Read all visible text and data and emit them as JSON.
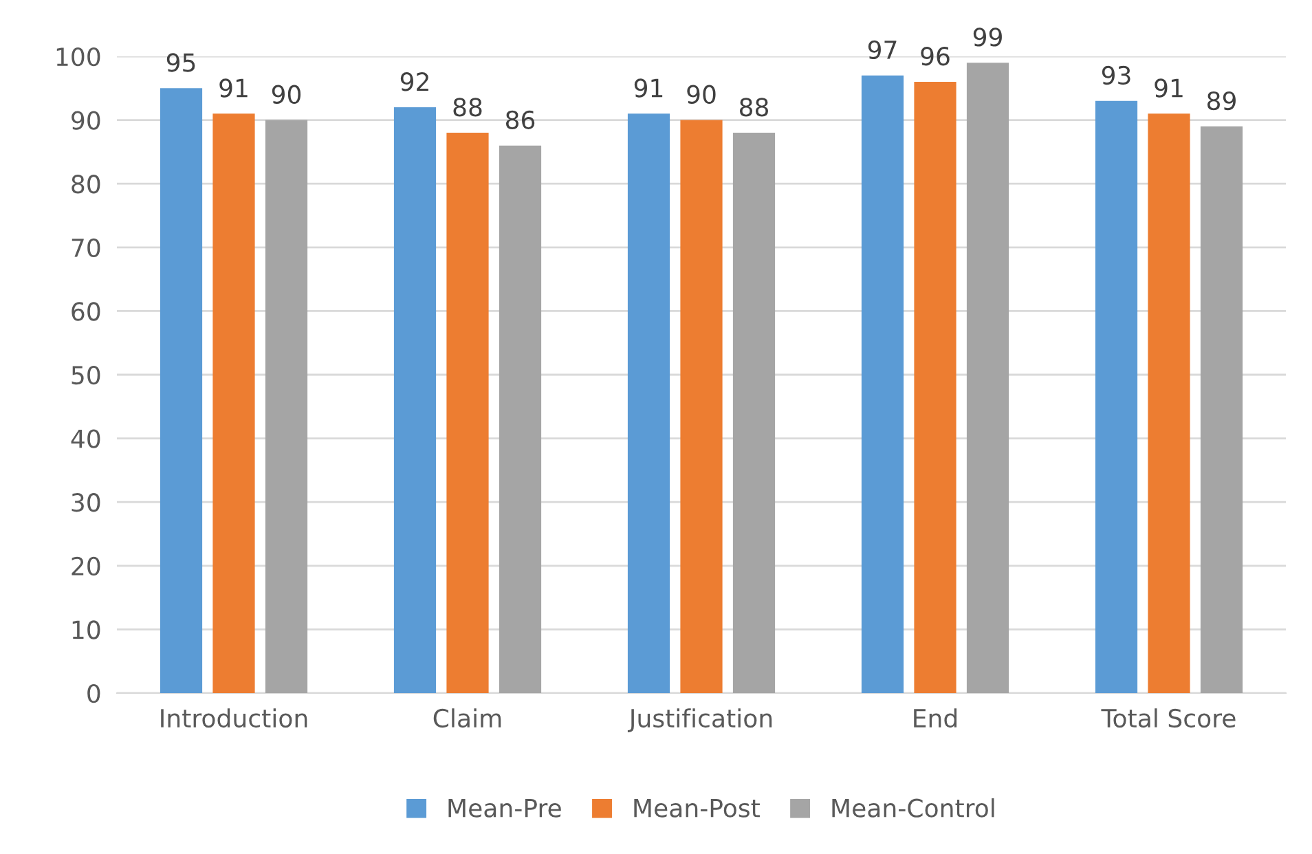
{
  "chart_data": {
    "type": "bar",
    "categories": [
      "Introduction",
      "Claim",
      "Justification",
      "End",
      "Total Score"
    ],
    "series": [
      {
        "name": "Mean-Pre",
        "color": "#5b9bd5",
        "values": [
          95,
          92,
          91,
          97,
          93
        ]
      },
      {
        "name": "Mean-Post",
        "color": "#ed7d31",
        "values": [
          91,
          88,
          90,
          96,
          91
        ]
      },
      {
        "name": "Mean-Control",
        "color": "#a5a5a5",
        "values": [
          90,
          86,
          88,
          99,
          89
        ]
      }
    ],
    "ylim": [
      0,
      100
    ],
    "yticks": [
      0,
      10,
      20,
      30,
      40,
      50,
      60,
      70,
      80,
      90,
      100
    ],
    "grid": "y",
    "legend": "bottom",
    "data_labels": true
  }
}
